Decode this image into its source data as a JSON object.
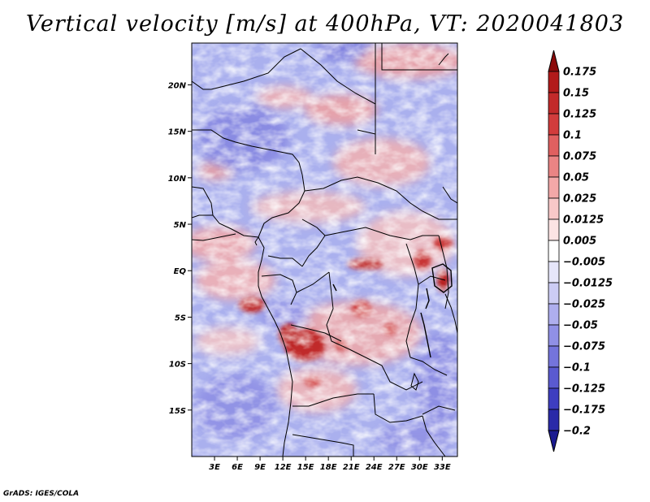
{
  "title": "Vertical velocity [m/s] at 400hPa, VT: 2020041803",
  "credit": "GrADS: IGES/COLA",
  "map": {
    "lat_range": [
      -20,
      24.5
    ],
    "lon_range": [
      0,
      35
    ],
    "lat_ticks": [
      {
        "value": 20,
        "label": "20N"
      },
      {
        "value": 15,
        "label": "15N"
      },
      {
        "value": 10,
        "label": "10N"
      },
      {
        "value": 5,
        "label": "5N"
      },
      {
        "value": 0,
        "label": "EQ"
      },
      {
        "value": -5,
        "label": "5S"
      },
      {
        "value": -10,
        "label": "10S"
      },
      {
        "value": -15,
        "label": "15S"
      }
    ],
    "lon_ticks": [
      {
        "value": 3,
        "label": "3E"
      },
      {
        "value": 6,
        "label": "6E"
      },
      {
        "value": 9,
        "label": "9E"
      },
      {
        "value": 12,
        "label": "12E"
      },
      {
        "value": 15,
        "label": "15E"
      },
      {
        "value": 18,
        "label": "18E"
      },
      {
        "value": 21,
        "label": "21E"
      },
      {
        "value": 24,
        "label": "24E"
      },
      {
        "value": 27,
        "label": "27E"
      },
      {
        "value": 30,
        "label": "30E"
      },
      {
        "value": 33,
        "label": "33E"
      }
    ],
    "strong_ascent_regions": [
      {
        "lon": 15,
        "lat": -7
      },
      {
        "lon": 14,
        "lat": -9
      },
      {
        "lon": 23,
        "lat": -2
      },
      {
        "lon": 22,
        "lat": -5
      },
      {
        "lon": 28,
        "lat": -2
      },
      {
        "lon": 31,
        "lat": 1
      },
      {
        "lon": 8,
        "lat": -3.5
      },
      {
        "lon": 17,
        "lat": 20
      }
    ]
  },
  "colorbar": {
    "levels": [
      {
        "label": "0.175",
        "color": "#a01010"
      },
      {
        "label": "0.15",
        "color": "#b21a1a"
      },
      {
        "label": "0.125",
        "color": "#c22a2a"
      },
      {
        "label": "0.1",
        "color": "#d23c3c"
      },
      {
        "label": "0.075",
        "color": "#e06060"
      },
      {
        "label": "0.05",
        "color": "#ea8484"
      },
      {
        "label": "0.025",
        "color": "#f3a8a8"
      },
      {
        "label": "0.0125",
        "color": "#f8c8c8"
      },
      {
        "label": "0.005",
        "color": "#fce4e4"
      },
      {
        "label": "-0.005",
        "color": "#ffffff"
      },
      {
        "label": "-0.0125",
        "color": "#e6e6fa"
      },
      {
        "label": "-0.025",
        "color": "#ccccf4"
      },
      {
        "label": "-0.05",
        "color": "#aeaeee"
      },
      {
        "label": "-0.075",
        "color": "#9090e6"
      },
      {
        "label": "-0.1",
        "color": "#7474dc"
      },
      {
        "label": "-0.125",
        "color": "#5a5ad0"
      },
      {
        "label": "-0.175",
        "color": "#3e3ec0"
      },
      {
        "label": "-0.2",
        "color": "#2a2aa8"
      }
    ],
    "top_color": "#8c0a0a",
    "bottom_color": "#1a1a90"
  }
}
